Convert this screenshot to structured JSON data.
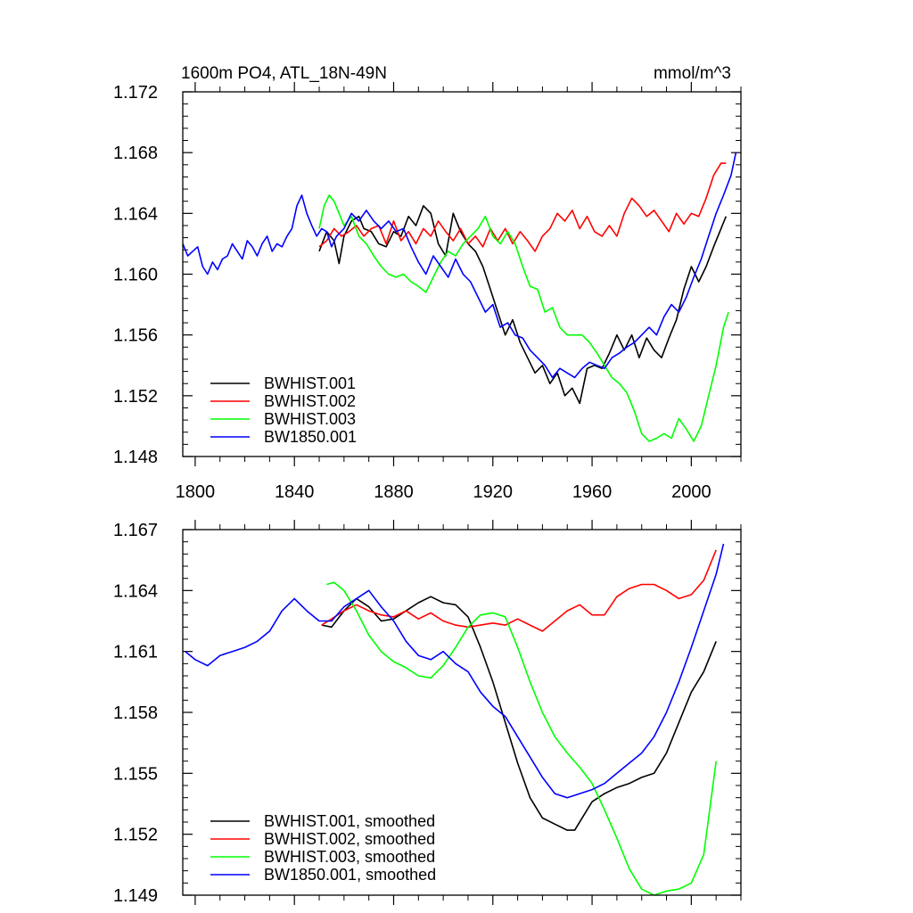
{
  "chart_data": [
    {
      "type": "line",
      "title": "1600m PO4, ATL_18N-49N",
      "units": "mmol/m^3",
      "xlabel": "",
      "ylabel": "",
      "xlim": [
        1795,
        2020
      ],
      "ylim": [
        1.148,
        1.172
      ],
      "xticks": [
        1800,
        1840,
        1880,
        1920,
        1960,
        2000
      ],
      "yticks": [
        1.148,
        1.152,
        1.156,
        1.16,
        1.164,
        1.168,
        1.172
      ],
      "ytick_labels": [
        "1.148",
        "1.152",
        "1.156",
        "1.160",
        "1.164",
        "1.168",
        "1.172"
      ],
      "show_xtick_labels": true,
      "legend_position": "bottom-left",
      "series": [
        {
          "name": "BWHIST.001",
          "color": "#000000",
          "x": [
            1850,
            1853,
            1856,
            1858,
            1860,
            1863,
            1866,
            1868,
            1871,
            1874,
            1877,
            1880,
            1883,
            1886,
            1889,
            1892,
            1895,
            1898,
            1901,
            1904,
            1907,
            1910,
            1913,
            1916,
            1919,
            1922,
            1925,
            1928,
            1931,
            1934,
            1937,
            1940,
            1943,
            1946,
            1949,
            1952,
            1955,
            1958,
            1961,
            1964,
            1967,
            1970,
            1973,
            1976,
            1979,
            1982,
            1985,
            1988,
            1991,
            1994,
            1997,
            2000,
            2003,
            2006,
            2009,
            2012,
            2014
          ],
          "values": [
            1.1615,
            1.1628,
            1.1622,
            1.1607,
            1.1625,
            1.1635,
            1.1638,
            1.163,
            1.1628,
            1.162,
            1.1618,
            1.1628,
            1.1625,
            1.1638,
            1.1632,
            1.1645,
            1.164,
            1.162,
            1.1612,
            1.164,
            1.1628,
            1.162,
            1.1615,
            1.1605,
            1.159,
            1.1575,
            1.156,
            1.157,
            1.1555,
            1.1545,
            1.1535,
            1.154,
            1.1528,
            1.1535,
            1.152,
            1.1525,
            1.1515,
            1.1538,
            1.154,
            1.1538,
            1.1548,
            1.156,
            1.155,
            1.156,
            1.1545,
            1.1558,
            1.155,
            1.1545,
            1.1558,
            1.157,
            1.159,
            1.1605,
            1.1595,
            1.1605,
            1.1618,
            1.163,
            1.1638
          ]
        },
        {
          "name": "BWHIST.002",
          "color": "#ff0000",
          "x": [
            1850,
            1853,
            1856,
            1859,
            1862,
            1865,
            1868,
            1871,
            1874,
            1877,
            1880,
            1883,
            1886,
            1889,
            1892,
            1895,
            1898,
            1901,
            1904,
            1907,
            1910,
            1913,
            1916,
            1919,
            1922,
            1925,
            1928,
            1931,
            1934,
            1937,
            1940,
            1943,
            1946,
            1949,
            1952,
            1955,
            1958,
            1961,
            1964,
            1967,
            1970,
            1973,
            1976,
            1979,
            1982,
            1985,
            1988,
            1991,
            1994,
            1997,
            2000,
            2003,
            2006,
            2009,
            2012,
            2014
          ],
          "values": [
            1.1618,
            1.1622,
            1.163,
            1.1625,
            1.1628,
            1.1632,
            1.1625,
            1.163,
            1.1632,
            1.162,
            1.1635,
            1.1622,
            1.1628,
            1.162,
            1.163,
            1.1625,
            1.1635,
            1.1628,
            1.1622,
            1.163,
            1.162,
            1.1625,
            1.1618,
            1.163,
            1.1622,
            1.163,
            1.162,
            1.1628,
            1.1622,
            1.1615,
            1.1625,
            1.163,
            1.164,
            1.1635,
            1.1642,
            1.163,
            1.1638,
            1.1628,
            1.1625,
            1.1632,
            1.1625,
            1.164,
            1.165,
            1.1645,
            1.1638,
            1.1642,
            1.1635,
            1.1628,
            1.164,
            1.1633,
            1.164,
            1.1638,
            1.165,
            1.1665,
            1.1673,
            1.1673
          ]
        },
        {
          "name": "BWHIST.003",
          "color": "#00ff00",
          "x": [
            1850,
            1852,
            1854,
            1856,
            1858,
            1860,
            1863,
            1866,
            1869,
            1872,
            1875,
            1878,
            1881,
            1884,
            1887,
            1890,
            1893,
            1896,
            1899,
            1902,
            1905,
            1908,
            1911,
            1914,
            1917,
            1920,
            1923,
            1926,
            1929,
            1932,
            1935,
            1938,
            1941,
            1944,
            1947,
            1950,
            1953,
            1956,
            1959,
            1962,
            1965,
            1968,
            1971,
            1974,
            1977,
            1980,
            1983,
            1986,
            1989,
            1992,
            1995,
            1998,
            2001,
            2004,
            2007,
            2010,
            2013,
            2015
          ],
          "values": [
            1.163,
            1.1645,
            1.1652,
            1.1648,
            1.164,
            1.1632,
            1.1638,
            1.1625,
            1.162,
            1.1612,
            1.1605,
            1.16,
            1.1598,
            1.16,
            1.1595,
            1.1592,
            1.1588,
            1.1598,
            1.1608,
            1.1615,
            1.1612,
            1.162,
            1.1625,
            1.163,
            1.1638,
            1.1625,
            1.162,
            1.1628,
            1.162,
            1.1605,
            1.1592,
            1.159,
            1.1575,
            1.1578,
            1.1565,
            1.156,
            1.156,
            1.156,
            1.1555,
            1.1548,
            1.154,
            1.1532,
            1.1528,
            1.1522,
            1.151,
            1.1495,
            1.149,
            1.1492,
            1.1495,
            1.1492,
            1.1505,
            1.1498,
            1.149,
            1.15,
            1.152,
            1.154,
            1.1565,
            1.1575
          ]
        },
        {
          "name": "BW1850.001",
          "color": "#0000ff",
          "x": [
            1795,
            1797,
            1799,
            1801,
            1803,
            1805,
            1807,
            1809,
            1811,
            1813,
            1815,
            1817,
            1819,
            1821,
            1823,
            1825,
            1827,
            1829,
            1831,
            1833,
            1835,
            1837,
            1839,
            1841,
            1843,
            1845,
            1847,
            1849,
            1851,
            1853,
            1855,
            1857,
            1860,
            1863,
            1866,
            1869,
            1872,
            1875,
            1878,
            1881,
            1884,
            1887,
            1890,
            1893,
            1896,
            1899,
            1902,
            1905,
            1908,
            1911,
            1914,
            1917,
            1920,
            1923,
            1926,
            1929,
            1932,
            1935,
            1938,
            1941,
            1944,
            1947,
            1950,
            1953,
            1956,
            1959,
            1962,
            1965,
            1968,
            1971,
            1974,
            1977,
            1980,
            1983,
            1986,
            1989,
            1992,
            1995,
            1998,
            2001,
            2004,
            2007,
            2010,
            2013,
            2016,
            2018
          ],
          "values": [
            1.162,
            1.1612,
            1.1615,
            1.1618,
            1.1605,
            1.16,
            1.1608,
            1.1603,
            1.161,
            1.1612,
            1.162,
            1.1615,
            1.161,
            1.1622,
            1.1618,
            1.1612,
            1.162,
            1.1625,
            1.1615,
            1.162,
            1.1618,
            1.1625,
            1.163,
            1.1645,
            1.1652,
            1.164,
            1.1632,
            1.1625,
            1.163,
            1.1628,
            1.1618,
            1.1625,
            1.163,
            1.164,
            1.1635,
            1.1642,
            1.1635,
            1.163,
            1.1635,
            1.1628,
            1.163,
            1.1618,
            1.1608,
            1.16,
            1.1612,
            1.1605,
            1.1598,
            1.161,
            1.16,
            1.1595,
            1.1585,
            1.1575,
            1.158,
            1.1565,
            1.1568,
            1.156,
            1.1558,
            1.155,
            1.1545,
            1.154,
            1.1532,
            1.1538,
            1.1535,
            1.1532,
            1.1538,
            1.1542,
            1.154,
            1.1538,
            1.1545,
            1.1548,
            1.1552,
            1.1555,
            1.156,
            1.1565,
            1.156,
            1.1572,
            1.158,
            1.1575,
            1.1585,
            1.1598,
            1.161,
            1.1625,
            1.164,
            1.1652,
            1.1665,
            1.168
          ]
        }
      ]
    },
    {
      "type": "line",
      "title": "",
      "xlabel": "",
      "ylabel": "",
      "xlim": [
        1795,
        2020
      ],
      "ylim": [
        1.149,
        1.167
      ],
      "xticks": [
        1800,
        1840,
        1880,
        1920,
        1960,
        2000
      ],
      "yticks": [
        1.149,
        1.152,
        1.155,
        1.158,
        1.161,
        1.164,
        1.167
      ],
      "ytick_labels": [
        "1.149",
        "1.152",
        "1.155",
        "1.158",
        "1.161",
        "1.164",
        "1.167"
      ],
      "show_xtick_labels": false,
      "legend_position": "bottom-left",
      "series": [
        {
          "name": "BWHIST.001, smoothed",
          "color": "#000000",
          "x": [
            1851,
            1855,
            1860,
            1865,
            1870,
            1875,
            1880,
            1885,
            1890,
            1895,
            1900,
            1905,
            1910,
            1915,
            1920,
            1925,
            1930,
            1935,
            1940,
            1945,
            1950,
            1953,
            1956,
            1960,
            1965,
            1970,
            1975,
            1980,
            1985,
            1990,
            1995,
            2000,
            2005,
            2010
          ],
          "values": [
            1.1623,
            1.1622,
            1.163,
            1.1636,
            1.1632,
            1.1625,
            1.1626,
            1.163,
            1.1634,
            1.1637,
            1.1634,
            1.1633,
            1.1627,
            1.1612,
            1.1595,
            1.1575,
            1.1555,
            1.1538,
            1.1528,
            1.1525,
            1.1522,
            1.1522,
            1.1528,
            1.1536,
            1.154,
            1.1543,
            1.1545,
            1.1548,
            1.155,
            1.156,
            1.1575,
            1.159,
            1.16,
            1.1615
          ]
        },
        {
          "name": "BWHIST.002, smoothed",
          "color": "#ff0000",
          "x": [
            1851,
            1855,
            1860,
            1865,
            1870,
            1875,
            1880,
            1885,
            1890,
            1895,
            1900,
            1905,
            1910,
            1915,
            1920,
            1925,
            1930,
            1935,
            1940,
            1945,
            1950,
            1955,
            1960,
            1965,
            1970,
            1975,
            1980,
            1985,
            1990,
            1995,
            2000,
            2005,
            2010
          ],
          "values": [
            1.1623,
            1.1626,
            1.163,
            1.1633,
            1.163,
            1.1628,
            1.1627,
            1.163,
            1.1626,
            1.1629,
            1.1625,
            1.1623,
            1.1622,
            1.1623,
            1.1624,
            1.1623,
            1.1626,
            1.1623,
            1.162,
            1.1625,
            1.163,
            1.1633,
            1.1628,
            1.1628,
            1.1637,
            1.1641,
            1.1643,
            1.1643,
            1.164,
            1.1636,
            1.1638,
            1.1645,
            1.166
          ]
        },
        {
          "name": "BWHIST.003, smoothed",
          "color": "#00ff00",
          "x": [
            1853,
            1856,
            1860,
            1865,
            1870,
            1875,
            1880,
            1885,
            1890,
            1895,
            1900,
            1905,
            1910,
            1915,
            1920,
            1925,
            1930,
            1935,
            1940,
            1945,
            1950,
            1955,
            1960,
            1965,
            1970,
            1975,
            1980,
            1985,
            1990,
            1995,
            2000,
            2005,
            2010
          ],
          "values": [
            1.1643,
            1.1644,
            1.164,
            1.163,
            1.1618,
            1.161,
            1.1605,
            1.1602,
            1.1598,
            1.1597,
            1.1603,
            1.1612,
            1.1622,
            1.1628,
            1.1629,
            1.1627,
            1.1612,
            1.1595,
            1.158,
            1.1568,
            1.156,
            1.1553,
            1.1545,
            1.1532,
            1.1518,
            1.1503,
            1.1493,
            1.149,
            1.1492,
            1.1493,
            1.1496,
            1.151,
            1.1556
          ]
        },
        {
          "name": "BW1850.001, smoothed",
          "color": "#0000ff",
          "x": [
            1796,
            1800,
            1805,
            1810,
            1815,
            1820,
            1825,
            1830,
            1835,
            1840,
            1845,
            1850,
            1855,
            1860,
            1865,
            1870,
            1875,
            1880,
            1885,
            1890,
            1895,
            1900,
            1905,
            1910,
            1915,
            1920,
            1925,
            1930,
            1935,
            1940,
            1945,
            1950,
            1955,
            1960,
            1965,
            1970,
            1975,
            1980,
            1985,
            1990,
            1995,
            2000,
            2005,
            2010,
            2013
          ],
          "values": [
            1.161,
            1.1606,
            1.1603,
            1.1608,
            1.161,
            1.1612,
            1.1615,
            1.162,
            1.163,
            1.1636,
            1.163,
            1.1625,
            1.1625,
            1.1632,
            1.1636,
            1.164,
            1.1632,
            1.1625,
            1.1615,
            1.1608,
            1.1606,
            1.161,
            1.1604,
            1.16,
            1.159,
            1.1583,
            1.1578,
            1.1568,
            1.1558,
            1.1548,
            1.154,
            1.1538,
            1.154,
            1.1542,
            1.1545,
            1.155,
            1.1555,
            1.156,
            1.1568,
            1.158,
            1.1595,
            1.1612,
            1.163,
            1.1648,
            1.1663
          ]
        }
      ]
    }
  ]
}
